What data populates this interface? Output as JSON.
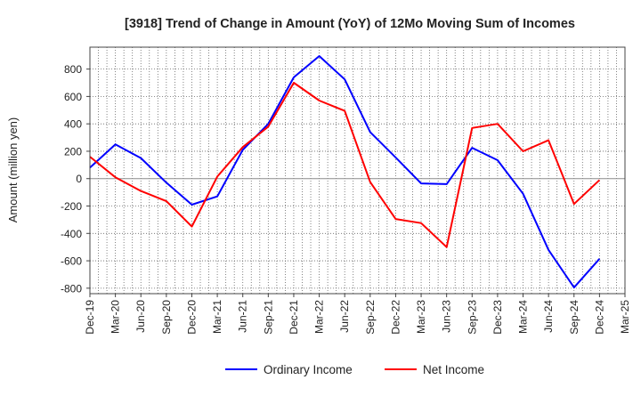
{
  "chart_data": {
    "type": "line",
    "title": "[3918]  Trend of Change in Amount (YoY) of 12Mo Moving Sum of Incomes",
    "xlabel": "",
    "ylabel": "Amount (million yen)",
    "ylim": [
      -840,
      960
    ],
    "yticks": [
      -800,
      -600,
      -400,
      -200,
      0,
      200,
      400,
      600,
      800
    ],
    "grid": true,
    "legend_position": "bottom-center",
    "x": [
      "Dec-19",
      "Mar-20",
      "Jun-20",
      "Sep-20",
      "Dec-20",
      "Mar-21",
      "Jun-21",
      "Sep-21",
      "Dec-21",
      "Mar-22",
      "Jun-22",
      "Sep-22",
      "Dec-22",
      "Mar-23",
      "Jun-23",
      "Sep-23",
      "Dec-23",
      "Mar-24",
      "Jun-24",
      "Sep-24",
      "Dec-24",
      "Mar-25"
    ],
    "series": [
      {
        "name": "Ordinary Income",
        "color": "#0000ff",
        "values": [
          80,
          250,
          150,
          -30,
          -190,
          -130,
          210,
          400,
          740,
          895,
          725,
          340,
          155,
          -35,
          -40,
          225,
          135,
          -110,
          -520,
          -795,
          -585,
          null
        ]
      },
      {
        "name": "Net Income",
        "color": "#ff0000",
        "values": [
          160,
          10,
          -90,
          -165,
          -350,
          15,
          230,
          380,
          700,
          570,
          495,
          -25,
          -295,
          -325,
          -500,
          370,
          400,
          200,
          280,
          -185,
          -10,
          null
        ]
      }
    ]
  }
}
